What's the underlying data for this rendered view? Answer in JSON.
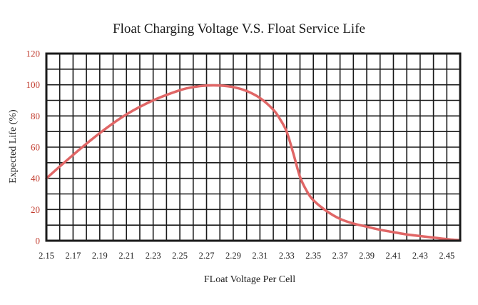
{
  "chart_data": {
    "type": "line",
    "title": "Float Charging Voltage V.S. Float Service Life",
    "xlabel": "FLoat Voltage Per Cell",
    "ylabel": "Expected Life (%)",
    "xlim": [
      2.15,
      2.46
    ],
    "ylim": [
      0,
      120
    ],
    "x_ticks": [
      "2.15",
      "2.17",
      "2.19",
      "2.21",
      "2.23",
      "2.25",
      "2.27",
      "2.29",
      "2.31",
      "2.33",
      "2.35",
      "2.37",
      "2.39",
      "2.41",
      "2.43",
      "2.45"
    ],
    "y_ticks": [
      "0",
      "20",
      "40",
      "60",
      "80",
      "100",
      "120"
    ],
    "grid": true,
    "colors": {
      "line": "#e06666",
      "grid": "#1a1a1a",
      "ytick": "#c0392b"
    },
    "series": [
      {
        "x": [
          2.15,
          2.17,
          2.19,
          2.21,
          2.23,
          2.25,
          2.26,
          2.27,
          2.28,
          2.29,
          2.3,
          2.31,
          2.32,
          2.325,
          2.33,
          2.335,
          2.34,
          2.345,
          2.35,
          2.36,
          2.37,
          2.38,
          2.39,
          2.4,
          2.41,
          2.42,
          2.43,
          2.44,
          2.45,
          2.46
        ],
        "values": [
          40,
          55,
          69,
          81,
          90,
          96.5,
          98.5,
          99.5,
          99.5,
          98.5,
          96,
          91.5,
          84,
          78,
          70,
          56,
          41,
          32,
          26,
          19,
          14,
          11,
          9,
          7,
          5.5,
          4,
          3,
          2,
          1,
          0.3
        ]
      }
    ]
  }
}
